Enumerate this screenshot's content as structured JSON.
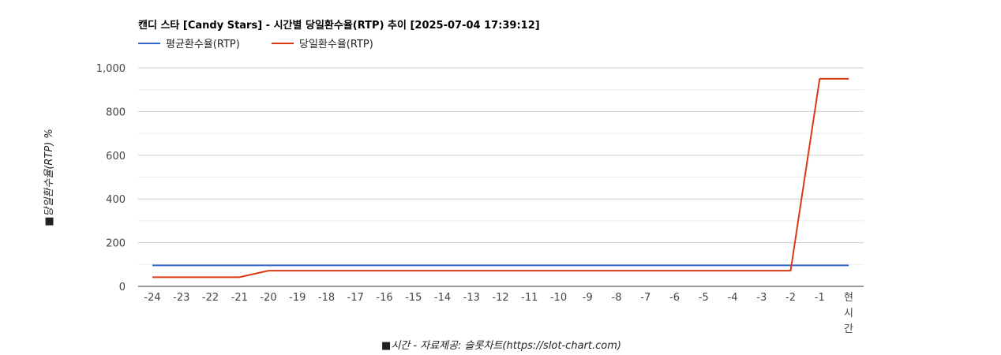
{
  "chart_data": {
    "type": "line",
    "title": "캔디 스타 [Candy Stars] - 시간별 당일환수율(RTP) 추이 [2025-07-04 17:39:12]",
    "xlabel": "■시간 - 자료제공: 슬롯차트(https://slot-chart.com)",
    "ylabel": "■당일환수율(RTP) %",
    "categories": [
      "-24",
      "-23",
      "-22",
      "-21",
      "-20",
      "-19",
      "-18",
      "-17",
      "-16",
      "-15",
      "-14",
      "-13",
      "-12",
      "-11",
      "-10",
      "-9",
      "-8",
      "-7",
      "-6",
      "-5",
      "-4",
      "-3",
      "-2",
      "-1",
      "현시간"
    ],
    "ylim": [
      0,
      1000
    ],
    "yticks": [
      "0",
      "200",
      "400",
      "600",
      "800",
      "1,000"
    ],
    "grid": true,
    "legend_position": "top-left",
    "series": [
      {
        "name": "평균환수율(RTP)",
        "color": "#3366cc",
        "values": [
          96,
          96,
          96,
          96,
          96,
          96,
          96,
          96,
          96,
          96,
          96,
          96,
          96,
          96,
          96,
          96,
          96,
          96,
          96,
          96,
          96,
          96,
          96,
          96,
          96
        ]
      },
      {
        "name": "당일환수율(RTP)",
        "color": "#dc3912",
        "values": [
          42,
          42,
          42,
          42,
          72,
          72,
          72,
          72,
          72,
          72,
          72,
          72,
          72,
          72,
          72,
          72,
          72,
          72,
          72,
          72,
          72,
          72,
          72,
          950,
          950
        ]
      }
    ]
  }
}
